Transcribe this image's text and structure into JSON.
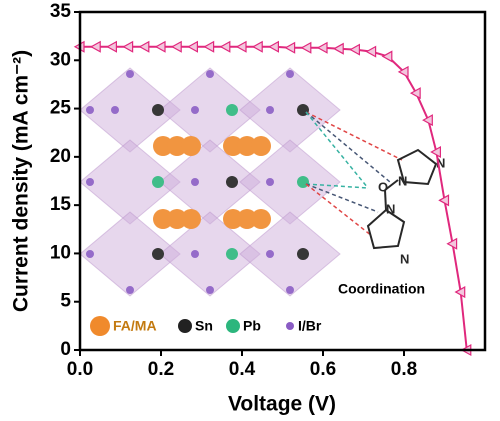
{
  "chart_data": {
    "type": "line",
    "x_label": "Voltage (V)",
    "y_label": "Current density (mA cm⁻²)",
    "xlim": [
      0,
      1.0
    ],
    "xticks": [
      {
        "value": 0,
        "label": "0.0"
      },
      0.2,
      0.4,
      0.6,
      0.8
    ],
    "ylim": [
      0,
      35
    ],
    "yticks": [
      0,
      5,
      10,
      15,
      20,
      25,
      30,
      35
    ],
    "series": [
      {
        "color": "#e0287d",
        "x": [
          0,
          0.04,
          0.08,
          0.12,
          0.16,
          0.2,
          0.24,
          0.28,
          0.32,
          0.36,
          0.4,
          0.44,
          0.48,
          0.52,
          0.56,
          0.6,
          0.64,
          0.68,
          0.72,
          0.76,
          0.8,
          0.83,
          0.86,
          0.88,
          0.9,
          0.92,
          0.94,
          0.955
        ],
        "values": [
          31.4,
          31.4,
          31.4,
          31.4,
          31.4,
          31.4,
          31.4,
          31.4,
          31.4,
          31.4,
          31.4,
          31.4,
          31.4,
          31.3,
          31.3,
          31.3,
          31.2,
          31.1,
          30.9,
          30.4,
          28.8,
          26.6,
          23.8,
          20.5,
          15.5,
          11.0,
          6.0,
          0
        ]
      }
    ]
  },
  "inset": {
    "legend": [
      "FA/MA",
      "Sn",
      "Pb",
      "I/Br"
    ],
    "label": "Coordination"
  }
}
